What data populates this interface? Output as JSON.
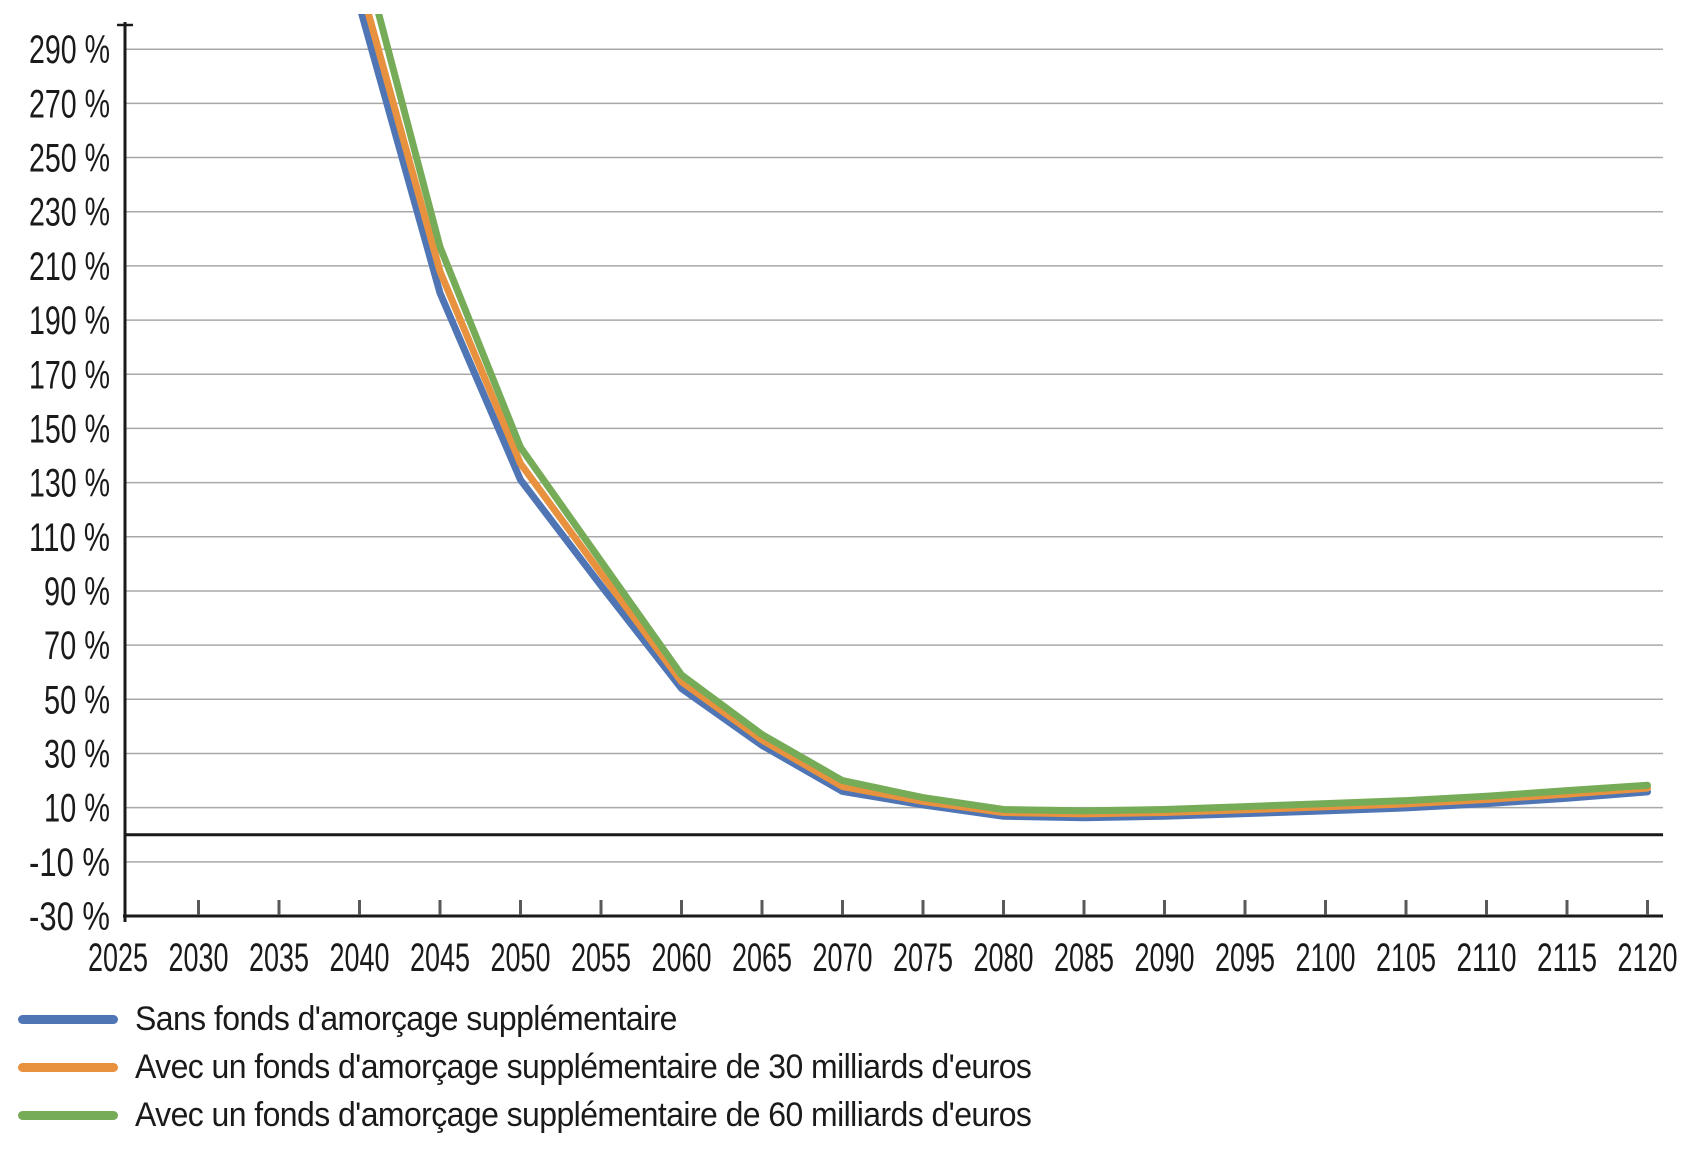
{
  "chart_data": {
    "type": "line",
    "title": "",
    "x": [
      2040,
      2045,
      2050,
      2055,
      2060,
      2065,
      2070,
      2075,
      2080,
      2085,
      2090,
      2095,
      2100,
      2105,
      2110,
      2115,
      2120
    ],
    "series": [
      {
        "name": "Sans fonds d'amorçage supplémentaire",
        "color": "#4F75B5",
        "values": [
          306,
          200,
          131,
          92,
          54,
          33,
          16,
          11,
          6.8,
          6.3,
          6.8,
          7.8,
          8.8,
          9.9,
          11.5,
          13.5,
          15.8
        ]
      },
      {
        "name": "Avec un fonds d'amorçage supplémentaire de 30 milliards d'euros",
        "color": "#E8923F",
        "values": [
          315,
          208,
          137,
          96.5,
          56.5,
          35,
          17.8,
          12.3,
          8.2,
          7.7,
          8.2,
          9.2,
          10.3,
          11.4,
          13,
          15,
          17.2
        ]
      },
      {
        "name": "Avec un fonds d'amorçage supplémentaire de 60 milliards d'euros",
        "color": "#76AC58",
        "values": [
          330,
          217,
          143,
          101,
          59,
          37,
          20,
          13.7,
          9.3,
          8.8,
          9.3,
          10.4,
          11.5,
          12.6,
          14.2,
          16.3,
          18.3
        ]
      }
    ],
    "x_tick_years": [
      2025,
      2030,
      2035,
      2040,
      2045,
      2050,
      2055,
      2060,
      2065,
      2070,
      2075,
      2080,
      2085,
      2090,
      2095,
      2100,
      2105,
      2110,
      2115,
      2120
    ],
    "y_ticks": [
      290,
      270,
      250,
      230,
      210,
      190,
      170,
      150,
      130,
      110,
      90,
      70,
      50,
      30,
      10,
      -10,
      -30
    ],
    "y_label_suffix": " %",
    "ylim": [
      -30,
      303
    ],
    "xlim": [
      2025,
      2120
    ],
    "grid": true,
    "zero_line": true,
    "legend_position": "bottom-left"
  },
  "colors": {
    "background": "#FFFFFF",
    "gridline": "#A8A8A8",
    "axis": "#1A1A1A",
    "tick": "#595959",
    "text": "#1A1A1A"
  }
}
